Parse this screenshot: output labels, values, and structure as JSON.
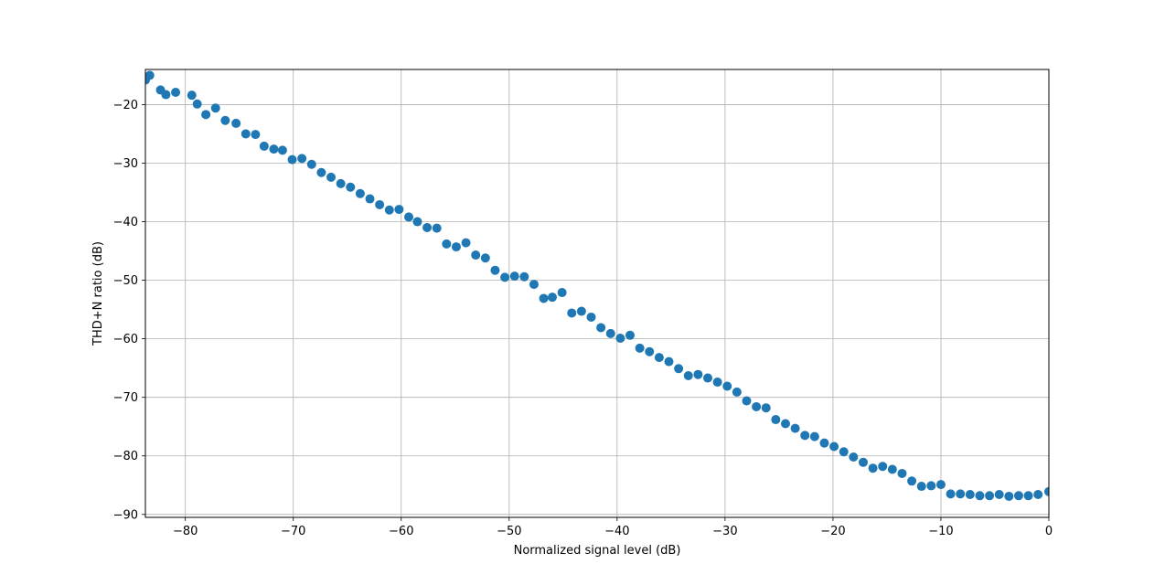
{
  "chart_data": {
    "type": "scatter",
    "title": "",
    "xlabel": "Normalized signal level (dB)",
    "ylabel": "THD+N ratio (dB)",
    "xlim": [
      -83.7,
      0
    ],
    "ylim": [
      -90.5,
      -14.0
    ],
    "xticks": [
      -80,
      -70,
      -60,
      -50,
      -40,
      -30,
      -20,
      -10,
      0
    ],
    "xtick_labels": [
      "−80",
      "−70",
      "−60",
      "−50",
      "−40",
      "−30",
      "−20",
      "−10",
      "0"
    ],
    "yticks": [
      -20,
      -30,
      -40,
      -50,
      -60,
      -70,
      -80,
      -90
    ],
    "ytick_labels": [
      "−20",
      "−30",
      "−40",
      "−50",
      "−60",
      "−70",
      "−80",
      "−90"
    ],
    "grid": true,
    "marker_color": "#1f77b4",
    "series": [
      {
        "x": [
          -83.7,
          -83.3,
          -82.3,
          -81.8,
          -80.9,
          -79.4,
          -78.9,
          -78.1,
          -77.2,
          -76.3,
          -75.3,
          -74.4,
          -73.5,
          -72.7,
          -71.8,
          -71.0,
          -70.1,
          -69.2,
          -68.3,
          -67.4,
          -66.5,
          -65.6,
          -64.7,
          -63.8,
          -62.9,
          -62.0,
          -61.1,
          -60.2,
          -59.3,
          -58.5,
          -57.6,
          -56.7,
          -55.8,
          -54.9,
          -54.0,
          -53.1,
          -52.2,
          -51.3,
          -50.4,
          -49.5,
          -48.6,
          -47.7,
          -46.8,
          -46.0,
          -45.1,
          -44.2,
          -43.3,
          -42.4,
          -41.5,
          -40.6,
          -39.7,
          -38.8,
          -37.9,
          -37.0,
          -36.1,
          -35.2,
          -34.3,
          -33.4,
          -32.5,
          -31.6,
          -30.7,
          -29.8,
          -28.9,
          -28.0,
          -27.1,
          -26.2,
          -25.3,
          -24.4,
          -23.5,
          -22.6,
          -21.7,
          -20.8,
          -19.9,
          -19.0,
          -18.1,
          -17.2,
          -16.3,
          -15.4,
          -14.5,
          -13.6,
          -12.7,
          -11.8,
          -10.9,
          -10.0,
          -9.1,
          -8.2,
          -7.3,
          -6.4,
          -5.5,
          -4.6,
          -3.7,
          -2.8,
          -1.9,
          -1.0,
          0.0
        ],
        "y": [
          -15.8,
          -15.0,
          -17.5,
          -18.3,
          -17.9,
          -18.4,
          -19.9,
          -21.7,
          -20.6,
          -22.7,
          -23.2,
          -25.0,
          -25.1,
          -27.1,
          -27.6,
          -27.8,
          -29.4,
          -29.2,
          -30.2,
          -31.6,
          -32.4,
          -33.5,
          -34.1,
          -35.2,
          -36.1,
          -37.1,
          -38.0,
          -37.9,
          -39.2,
          -40.0,
          -41.0,
          -41.1,
          -43.8,
          -44.3,
          -43.6,
          -45.7,
          -46.2,
          -48.3,
          -49.5,
          -49.3,
          -49.4,
          -50.7,
          -53.1,
          -52.9,
          -52.1,
          -55.6,
          -55.3,
          -56.3,
          -58.1,
          -59.1,
          -59.9,
          -59.4,
          -61.6,
          -62.2,
          -63.2,
          -63.9,
          -65.1,
          -66.3,
          -66.1,
          -66.7,
          -67.4,
          -68.1,
          -69.1,
          -70.6,
          -71.6,
          -71.8,
          -73.8,
          -74.5,
          -75.3,
          -76.5,
          -76.7,
          -77.8,
          -78.4,
          -79.3,
          -80.2,
          -81.1,
          -82.1,
          -81.8,
          -82.3,
          -83.0,
          -84.3,
          -85.2,
          -85.1,
          -84.9,
          -86.5,
          -86.5,
          -86.6,
          -86.8,
          -86.8,
          -86.6,
          -86.9,
          -86.8,
          -86.8,
          -86.6,
          -86.1
        ]
      }
    ]
  }
}
